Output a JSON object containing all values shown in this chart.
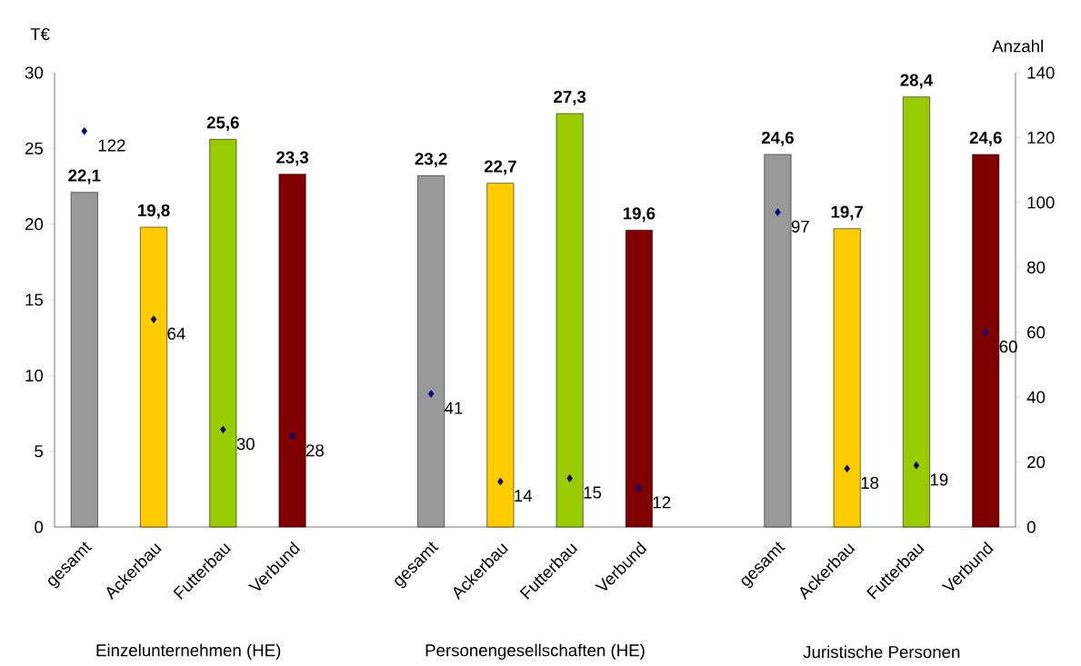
{
  "chart_data": {
    "type": "bar",
    "ylabel": "T€",
    "y2label": "Anzahl",
    "categories": [
      "gesamt",
      "Ackerbau",
      "Futterbau",
      "Verbund",
      null,
      "gesamt",
      "Ackerbau",
      "Futterbau",
      "Verbund",
      null,
      "gesamt",
      "Ackerbau",
      "Futterbau",
      "Verbund"
    ],
    "series": [
      {
        "colors": [
          "#999999",
          "#ffcc00",
          "#99cc00",
          "#800000",
          null,
          "#999999",
          "#ffcc00",
          "#99cc00",
          "#800000",
          null,
          "#999999",
          "#ffcc00",
          "#99cc00",
          "#800000"
        ],
        "values": [
          22.1,
          19.8,
          25.6,
          23.3,
          null,
          23.2,
          22.7,
          27.3,
          19.6,
          null,
          24.6,
          19.7,
          28.4,
          24.6
        ],
        "value_labels": [
          "22,1",
          "19,8",
          "25,6",
          "23,3",
          null,
          "23,2",
          "22,7",
          "27,3",
          "19,6",
          null,
          "24,6",
          "19,7",
          "28,4",
          "24,6"
        ]
      },
      {
        "type": "scatter",
        "axis": "y2",
        "color": "#000080",
        "values": [
          122,
          64,
          30,
          28,
          null,
          41,
          14,
          15,
          12,
          null,
          97,
          18,
          19,
          60
        ],
        "value_labels": [
          "122",
          "64",
          "30",
          "28",
          null,
          "41",
          "14",
          "15",
          "12",
          null,
          "97",
          "18",
          "19",
          "60"
        ]
      }
    ],
    "marker": "diamond",
    "ylim": [
      0,
      30
    ],
    "yticks": [
      0,
      5,
      10,
      15,
      20,
      25,
      30
    ],
    "y2lim": [
      0,
      140
    ],
    "y2ticks": [
      0,
      20,
      40,
      60,
      80,
      100,
      120,
      140
    ],
    "grid": false,
    "annotations": [
      "Einzelunternehmen (HE)",
      "Personengesellschaften (HE)",
      "Juristische Personen"
    ]
  }
}
